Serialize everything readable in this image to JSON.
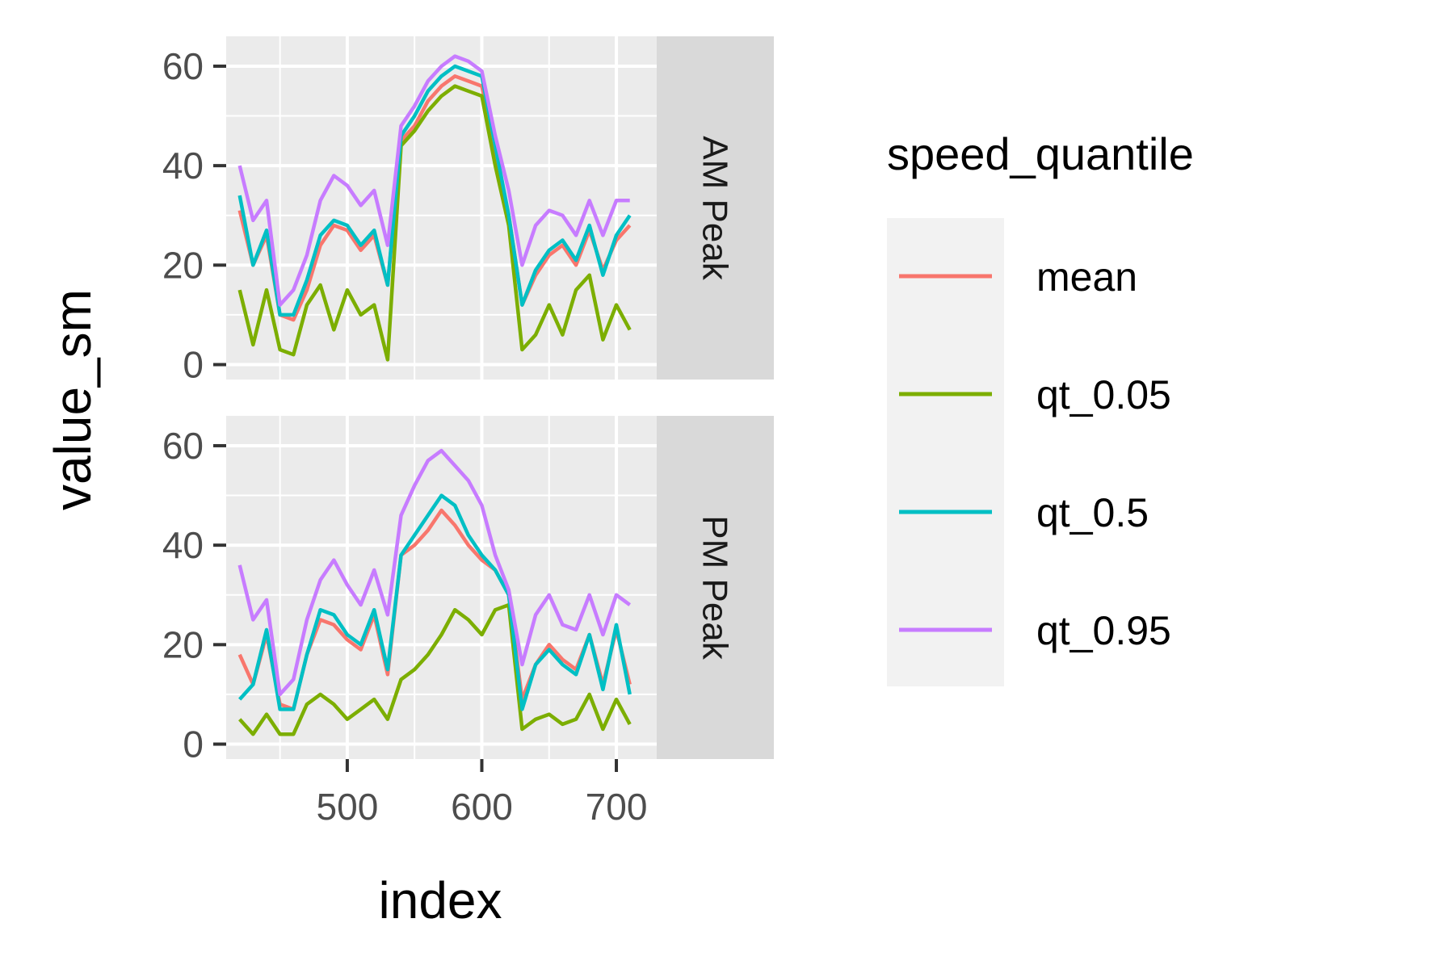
{
  "chart_data": {
    "type": "line",
    "xlabel": "index",
    "ylabel": "value_sm",
    "xlim": [
      410,
      730
    ],
    "ylim": [
      -3,
      66
    ],
    "x_ticks": [
      500,
      600,
      700
    ],
    "y_ticks": [
      0,
      20,
      40,
      60
    ],
    "grid": true,
    "legend": {
      "title": "speed_quantile",
      "position": "right",
      "entries": [
        "mean",
        "qt_0.05",
        "qt_0.5",
        "qt_0.95"
      ]
    },
    "colors": {
      "mean": "#F8766D",
      "qt_0.05": "#7CAE00",
      "qt_0.5": "#00BFC4",
      "qt_0.95": "#C77CFF"
    },
    "x": [
      420,
      430,
      440,
      450,
      460,
      470,
      480,
      490,
      500,
      510,
      520,
      530,
      540,
      550,
      560,
      570,
      580,
      590,
      600,
      610,
      620,
      630,
      640,
      650,
      660,
      670,
      680,
      690,
      700,
      710
    ],
    "panels": [
      {
        "strip": "AM Peak",
        "series": [
          {
            "name": "mean",
            "values": [
              31,
              20,
              26,
              10,
              9,
              15,
              24,
              28,
              27,
              23,
              26,
              16,
              45,
              48,
              53,
              56,
              58,
              57,
              56,
              43,
              30,
              12,
              18,
              22,
              24,
              20,
              27,
              19,
              25,
              28
            ]
          },
          {
            "name": "qt_0.05",
            "values": [
              15,
              4,
              15,
              3,
              2,
              12,
              16,
              7,
              15,
              10,
              12,
              1,
              44,
              47,
              51,
              54,
              56,
              55,
              54,
              40,
              28,
              3,
              6,
              12,
              6,
              15,
              18,
              5,
              12,
              7
            ]
          },
          {
            "name": "qt_0.5",
            "values": [
              34,
              20,
              27,
              10,
              10,
              17,
              26,
              29,
              28,
              24,
              27,
              16,
              46,
              50,
              55,
              58,
              60,
              59,
              58,
              44,
              30,
              12,
              19,
              23,
              25,
              21,
              28,
              18,
              26,
              30
            ]
          },
          {
            "name": "qt_0.95",
            "values": [
              40,
              29,
              33,
              12,
              15,
              22,
              33,
              38,
              36,
              32,
              35,
              24,
              48,
              52,
              57,
              60,
              62,
              61,
              59,
              46,
              35,
              20,
              28,
              31,
              30,
              26,
              33,
              26,
              33,
              33
            ]
          }
        ]
      },
      {
        "strip": "PM Peak",
        "series": [
          {
            "name": "mean",
            "values": [
              18,
              12,
              22,
              8,
              7,
              18,
              25,
              24,
              21,
              19,
              26,
              14,
              38,
              40,
              43,
              47,
              44,
              40,
              37,
              35,
              30,
              9,
              16,
              20,
              17,
              15,
              22,
              12,
              23,
              12
            ]
          },
          {
            "name": "qt_0.05",
            "values": [
              5,
              2,
              6,
              2,
              2,
              8,
              10,
              8,
              5,
              7,
              9,
              5,
              13,
              15,
              18,
              22,
              27,
              25,
              22,
              27,
              28,
              3,
              5,
              6,
              4,
              5,
              10,
              3,
              9,
              4
            ]
          },
          {
            "name": "qt_0.5",
            "values": [
              9,
              12,
              23,
              7,
              7,
              18,
              27,
              26,
              22,
              20,
              27,
              15,
              38,
              42,
              46,
              50,
              48,
              42,
              38,
              35,
              30,
              7,
              16,
              19,
              16,
              14,
              22,
              11,
              24,
              10
            ]
          },
          {
            "name": "qt_0.95",
            "values": [
              36,
              25,
              29,
              10,
              13,
              25,
              33,
              37,
              32,
              28,
              35,
              26,
              46,
              52,
              57,
              59,
              56,
              53,
              48,
              38,
              31,
              16,
              26,
              30,
              24,
              23,
              30,
              22,
              30,
              28
            ]
          }
        ]
      }
    ]
  }
}
